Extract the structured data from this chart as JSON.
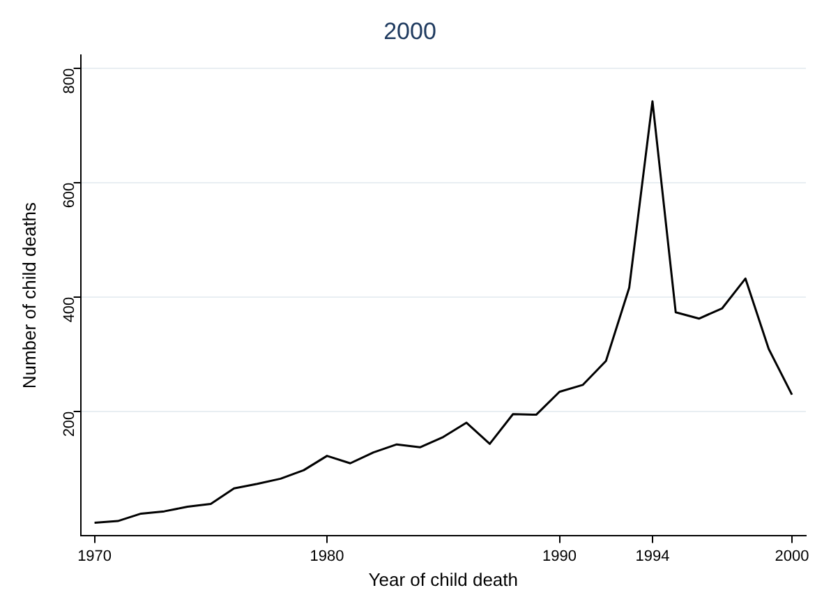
{
  "chart_data": {
    "type": "line",
    "title": "2000",
    "xlabel": "Year of child death",
    "ylabel": "Number of child deaths",
    "x": [
      1970,
      1971,
      1972,
      1973,
      1974,
      1975,
      1976,
      1977,
      1978,
      1979,
      1980,
      1981,
      1982,
      1983,
      1984,
      1985,
      1986,
      1987,
      1988,
      1989,
      1990,
      1991,
      1992,
      1993,
      1994,
      1995,
      1996,
      1997,
      1998,
      1999,
      2000
    ],
    "series": [
      {
        "color": "#000000",
        "values": [
          5,
          8,
          21,
          25,
          33,
          38,
          65,
          73,
          82,
          97,
          122,
          109,
          128,
          142,
          137,
          155,
          180,
          143,
          195,
          194,
          234,
          246,
          288,
          416,
          742,
          373,
          362,
          380,
          432,
          309,
          229
        ]
      }
    ],
    "xlim": [
      1969.4,
      2000.6
    ],
    "xticks": [
      1970,
      1980,
      1990,
      1994,
      2000
    ],
    "ylim": [
      -18,
      823
    ],
    "yticks": [
      200,
      400,
      600,
      800
    ],
    "grid": "y",
    "legend": false,
    "marker": "none",
    "line_style": "solid"
  }
}
